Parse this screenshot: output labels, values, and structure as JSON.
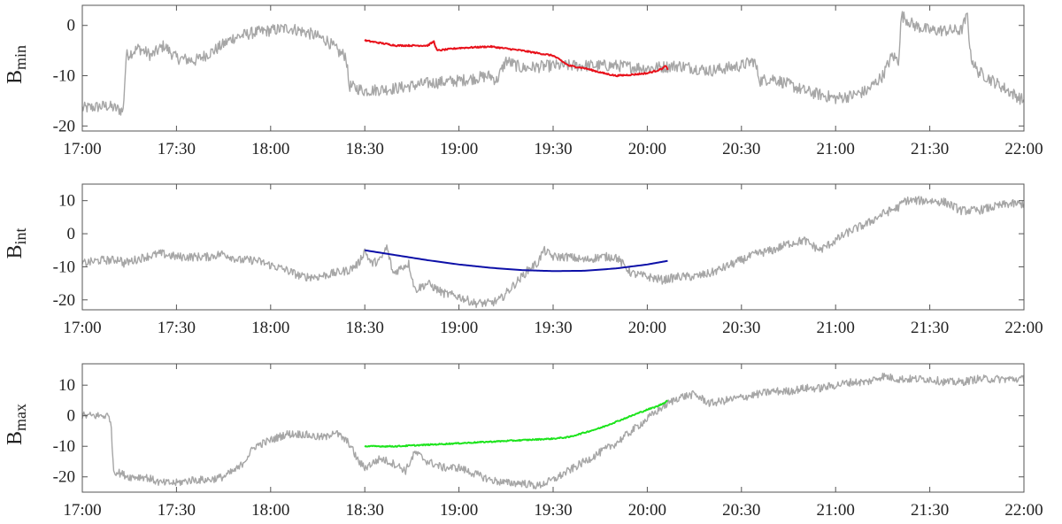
{
  "chart_data": [
    {
      "type": "line",
      "ylabel_main": "B",
      "ylabel_sub": "min",
      "xlabel": "",
      "x_ticks": [
        "17:00",
        "17:30",
        "18:00",
        "18:30",
        "19:00",
        "19:30",
        "20:00",
        "20:30",
        "21:00",
        "21:30",
        "22:00"
      ],
      "xlim_minutes": [
        0,
        300
      ],
      "y_ticks": [
        0,
        -10,
        -20
      ],
      "ylim": [
        -21,
        4
      ],
      "series": [
        {
          "color": "#a6a6a6",
          "noise": 1.2,
          "points": [
            [
              0,
              -16.5
            ],
            [
              8,
              -16
            ],
            [
              13,
              -17
            ],
            [
              14,
              -6
            ],
            [
              18,
              -4.5
            ],
            [
              22,
              -6
            ],
            [
              26,
              -4
            ],
            [
              30,
              -6.5
            ],
            [
              36,
              -7
            ],
            [
              42,
              -5
            ],
            [
              48,
              -2.5
            ],
            [
              54,
              -1.5
            ],
            [
              60,
              -1
            ],
            [
              66,
              -0.5
            ],
            [
              72,
              -1.5
            ],
            [
              78,
              -3
            ],
            [
              82,
              -5.5
            ],
            [
              84,
              -6
            ],
            [
              85,
              -12
            ],
            [
              90,
              -13
            ],
            [
              100,
              -12.5
            ],
            [
              110,
              -11.5
            ],
            [
              120,
              -11
            ],
            [
              125,
              -10.5
            ],
            [
              130,
              -10
            ],
            [
              132,
              -11
            ],
            [
              135,
              -7
            ],
            [
              140,
              -8.5
            ],
            [
              150,
              -8
            ],
            [
              160,
              -8
            ],
            [
              170,
              -8
            ],
            [
              180,
              -8.5
            ],
            [
              190,
              -8
            ],
            [
              200,
              -9
            ],
            [
              210,
              -8
            ],
            [
              214,
              -7
            ],
            [
              216,
              -11
            ],
            [
              220,
              -10.5
            ],
            [
              230,
              -13
            ],
            [
              240,
              -14.5
            ],
            [
              245,
              -14
            ],
            [
              250,
              -13
            ],
            [
              255,
              -10
            ],
            [
              258,
              -6
            ],
            [
              260,
              -7
            ],
            [
              261,
              2
            ],
            [
              265,
              0
            ],
            [
              270,
              -1
            ],
            [
              275,
              -1
            ],
            [
              280,
              -1
            ],
            [
              282,
              2
            ],
            [
              283,
              -6
            ],
            [
              285,
              -9
            ],
            [
              290,
              -11
            ],
            [
              300,
              -15
            ]
          ]
        },
        {
          "color": "#e8111b",
          "noise": 0.15,
          "points": [
            [
              90,
              -3
            ],
            [
              95,
              -3.5
            ],
            [
              100,
              -4
            ],
            [
              105,
              -4
            ],
            [
              110,
              -4
            ],
            [
              112,
              -3.2
            ],
            [
              113,
              -5
            ],
            [
              120,
              -4.5
            ],
            [
              130,
              -4.2
            ],
            [
              140,
              -5
            ],
            [
              145,
              -5.5
            ],
            [
              150,
              -6
            ],
            [
              155,
              -8
            ],
            [
              160,
              -8.5
            ],
            [
              166,
              -9.5
            ],
            [
              170,
              -10
            ],
            [
              175,
              -9.8
            ],
            [
              180,
              -9.5
            ],
            [
              183,
              -9
            ],
            [
              185,
              -8.5
            ],
            [
              186,
              -8
            ],
            [
              186.5,
              -9
            ]
          ]
        }
      ]
    },
    {
      "type": "line",
      "ylabel_main": "B",
      "ylabel_sub": "int",
      "xlabel": "",
      "x_ticks": [
        "17:00",
        "17:30",
        "18:00",
        "18:30",
        "19:00",
        "19:30",
        "20:00",
        "20:30",
        "21:00",
        "21:30",
        "22:00"
      ],
      "xlim_minutes": [
        0,
        300
      ],
      "y_ticks": [
        10,
        0,
        -10,
        -20
      ],
      "ylim": [
        -23,
        15
      ],
      "series": [
        {
          "color": "#a6a6a6",
          "noise": 1.3,
          "points": [
            [
              0,
              -9
            ],
            [
              6,
              -8
            ],
            [
              10,
              -8
            ],
            [
              12,
              -7.5
            ],
            [
              13,
              -9
            ],
            [
              20,
              -7
            ],
            [
              25,
              -6
            ],
            [
              30,
              -7
            ],
            [
              40,
              -7
            ],
            [
              45,
              -6
            ],
            [
              50,
              -8
            ],
            [
              55,
              -8
            ],
            [
              60,
              -9.5
            ],
            [
              65,
              -11
            ],
            [
              70,
              -13
            ],
            [
              75,
              -13
            ],
            [
              80,
              -12
            ],
            [
              85,
              -11
            ],
            [
              88,
              -9
            ],
            [
              90,
              -5
            ],
            [
              92,
              -9
            ],
            [
              95,
              -8
            ],
            [
              97,
              -4
            ],
            [
              99,
              -12
            ],
            [
              102,
              -10
            ],
            [
              104,
              -9
            ],
            [
              106,
              -17
            ],
            [
              110,
              -15
            ],
            [
              115,
              -18
            ],
            [
              120,
              -19
            ],
            [
              125,
              -21
            ],
            [
              130,
              -21
            ],
            [
              133,
              -20
            ],
            [
              136,
              -17
            ],
            [
              140,
              -13
            ],
            [
              143,
              -10
            ],
            [
              145,
              -9
            ],
            [
              147,
              -5
            ],
            [
              150,
              -7
            ],
            [
              155,
              -7
            ],
            [
              160,
              -8
            ],
            [
              165,
              -7
            ],
            [
              170,
              -7
            ],
            [
              175,
              -12
            ],
            [
              180,
              -13
            ],
            [
              185,
              -14
            ],
            [
              190,
              -13
            ],
            [
              195,
              -13
            ],
            [
              200,
              -12
            ],
            [
              205,
              -10
            ],
            [
              210,
              -8
            ],
            [
              215,
              -6
            ],
            [
              220,
              -5
            ],
            [
              225,
              -3
            ],
            [
              230,
              -2
            ],
            [
              235,
              -5
            ],
            [
              240,
              -2
            ],
            [
              245,
              1
            ],
            [
              250,
              3
            ],
            [
              255,
              6
            ],
            [
              260,
              8
            ],
            [
              262,
              10
            ],
            [
              270,
              10
            ],
            [
              275,
              9.5
            ],
            [
              280,
              7
            ],
            [
              285,
              7
            ],
            [
              290,
              8
            ],
            [
              295,
              9
            ],
            [
              300,
              9
            ]
          ]
        },
        {
          "color": "#0d10a8",
          "noise": 0,
          "points": [
            [
              90,
              -5
            ],
            [
              100,
              -6.5
            ],
            [
              110,
              -8
            ],
            [
              120,
              -9.3
            ],
            [
              130,
              -10.3
            ],
            [
              140,
              -11
            ],
            [
              150,
              -11.3
            ],
            [
              160,
              -11.2
            ],
            [
              170,
              -10.5
            ],
            [
              180,
              -9.3
            ],
            [
              186.5,
              -8.2
            ]
          ]
        }
      ]
    },
    {
      "type": "line",
      "ylabel_main": "B",
      "ylabel_sub": "max",
      "xlabel": "",
      "x_ticks": [
        "17:00",
        "17:30",
        "18:00",
        "18:30",
        "19:00",
        "19:30",
        "20:00",
        "20:30",
        "21:00",
        "21:30",
        "22:00"
      ],
      "xlim_minutes": [
        0,
        300
      ],
      "y_ticks": [
        10,
        0,
        -10,
        -20
      ],
      "ylim": [
        -25,
        17
      ],
      "series": [
        {
          "color": "#a6a6a6",
          "noise": 1.3,
          "points": [
            [
              0,
              0
            ],
            [
              5,
              0
            ],
            [
              8,
              0
            ],
            [
              9,
              -1
            ],
            [
              10,
              -18
            ],
            [
              15,
              -20
            ],
            [
              20,
              -20
            ],
            [
              25,
              -22
            ],
            [
              30,
              -22
            ],
            [
              35,
              -21
            ],
            [
              40,
              -21
            ],
            [
              45,
              -20
            ],
            [
              50,
              -17
            ],
            [
              55,
              -10
            ],
            [
              60,
              -8
            ],
            [
              65,
              -6
            ],
            [
              70,
              -6
            ],
            [
              75,
              -7
            ],
            [
              78,
              -7
            ],
            [
              80,
              -5
            ],
            [
              85,
              -9
            ],
            [
              88,
              -15
            ],
            [
              90,
              -17
            ],
            [
              95,
              -14
            ],
            [
              100,
              -16
            ],
            [
              103,
              -18
            ],
            [
              106,
              -12
            ],
            [
              110,
              -15
            ],
            [
              115,
              -17
            ],
            [
              120,
              -17
            ],
            [
              125,
              -19
            ],
            [
              130,
              -21
            ],
            [
              135,
              -22
            ],
            [
              140,
              -22
            ],
            [
              145,
              -23
            ],
            [
              150,
              -21
            ],
            [
              155,
              -18
            ],
            [
              160,
              -15
            ],
            [
              165,
              -12
            ],
            [
              170,
              -9
            ],
            [
              175,
              -5
            ],
            [
              180,
              -1
            ],
            [
              185,
              3
            ],
            [
              190,
              6
            ],
            [
              195,
              7
            ],
            [
              200,
              4
            ],
            [
              205,
              5
            ],
            [
              210,
              6
            ],
            [
              215,
              7
            ],
            [
              220,
              8
            ],
            [
              225,
              8
            ],
            [
              230,
              9
            ],
            [
              235,
              9
            ],
            [
              240,
              10
            ],
            [
              245,
              11
            ],
            [
              250,
              11
            ],
            [
              255,
              13
            ],
            [
              260,
              12
            ],
            [
              265,
              12
            ],
            [
              270,
              12
            ],
            [
              275,
              11
            ],
            [
              280,
              11
            ],
            [
              285,
              12
            ],
            [
              290,
              12
            ],
            [
              295,
              12
            ],
            [
              300,
              12
            ]
          ]
        },
        {
          "color": "#1de41d",
          "noise": 0.2,
          "points": [
            [
              90,
              -10
            ],
            [
              95,
              -10
            ],
            [
              100,
              -10
            ],
            [
              110,
              -9.5
            ],
            [
              120,
              -9
            ],
            [
              130,
              -8.5
            ],
            [
              140,
              -8
            ],
            [
              150,
              -7.5
            ],
            [
              155,
              -7
            ],
            [
              160,
              -5.5
            ],
            [
              165,
              -4
            ],
            [
              170,
              -2
            ],
            [
              175,
              0
            ],
            [
              180,
              2
            ],
            [
              183,
              3
            ],
            [
              185,
              4
            ],
            [
              186.5,
              5
            ]
          ]
        }
      ]
    }
  ]
}
